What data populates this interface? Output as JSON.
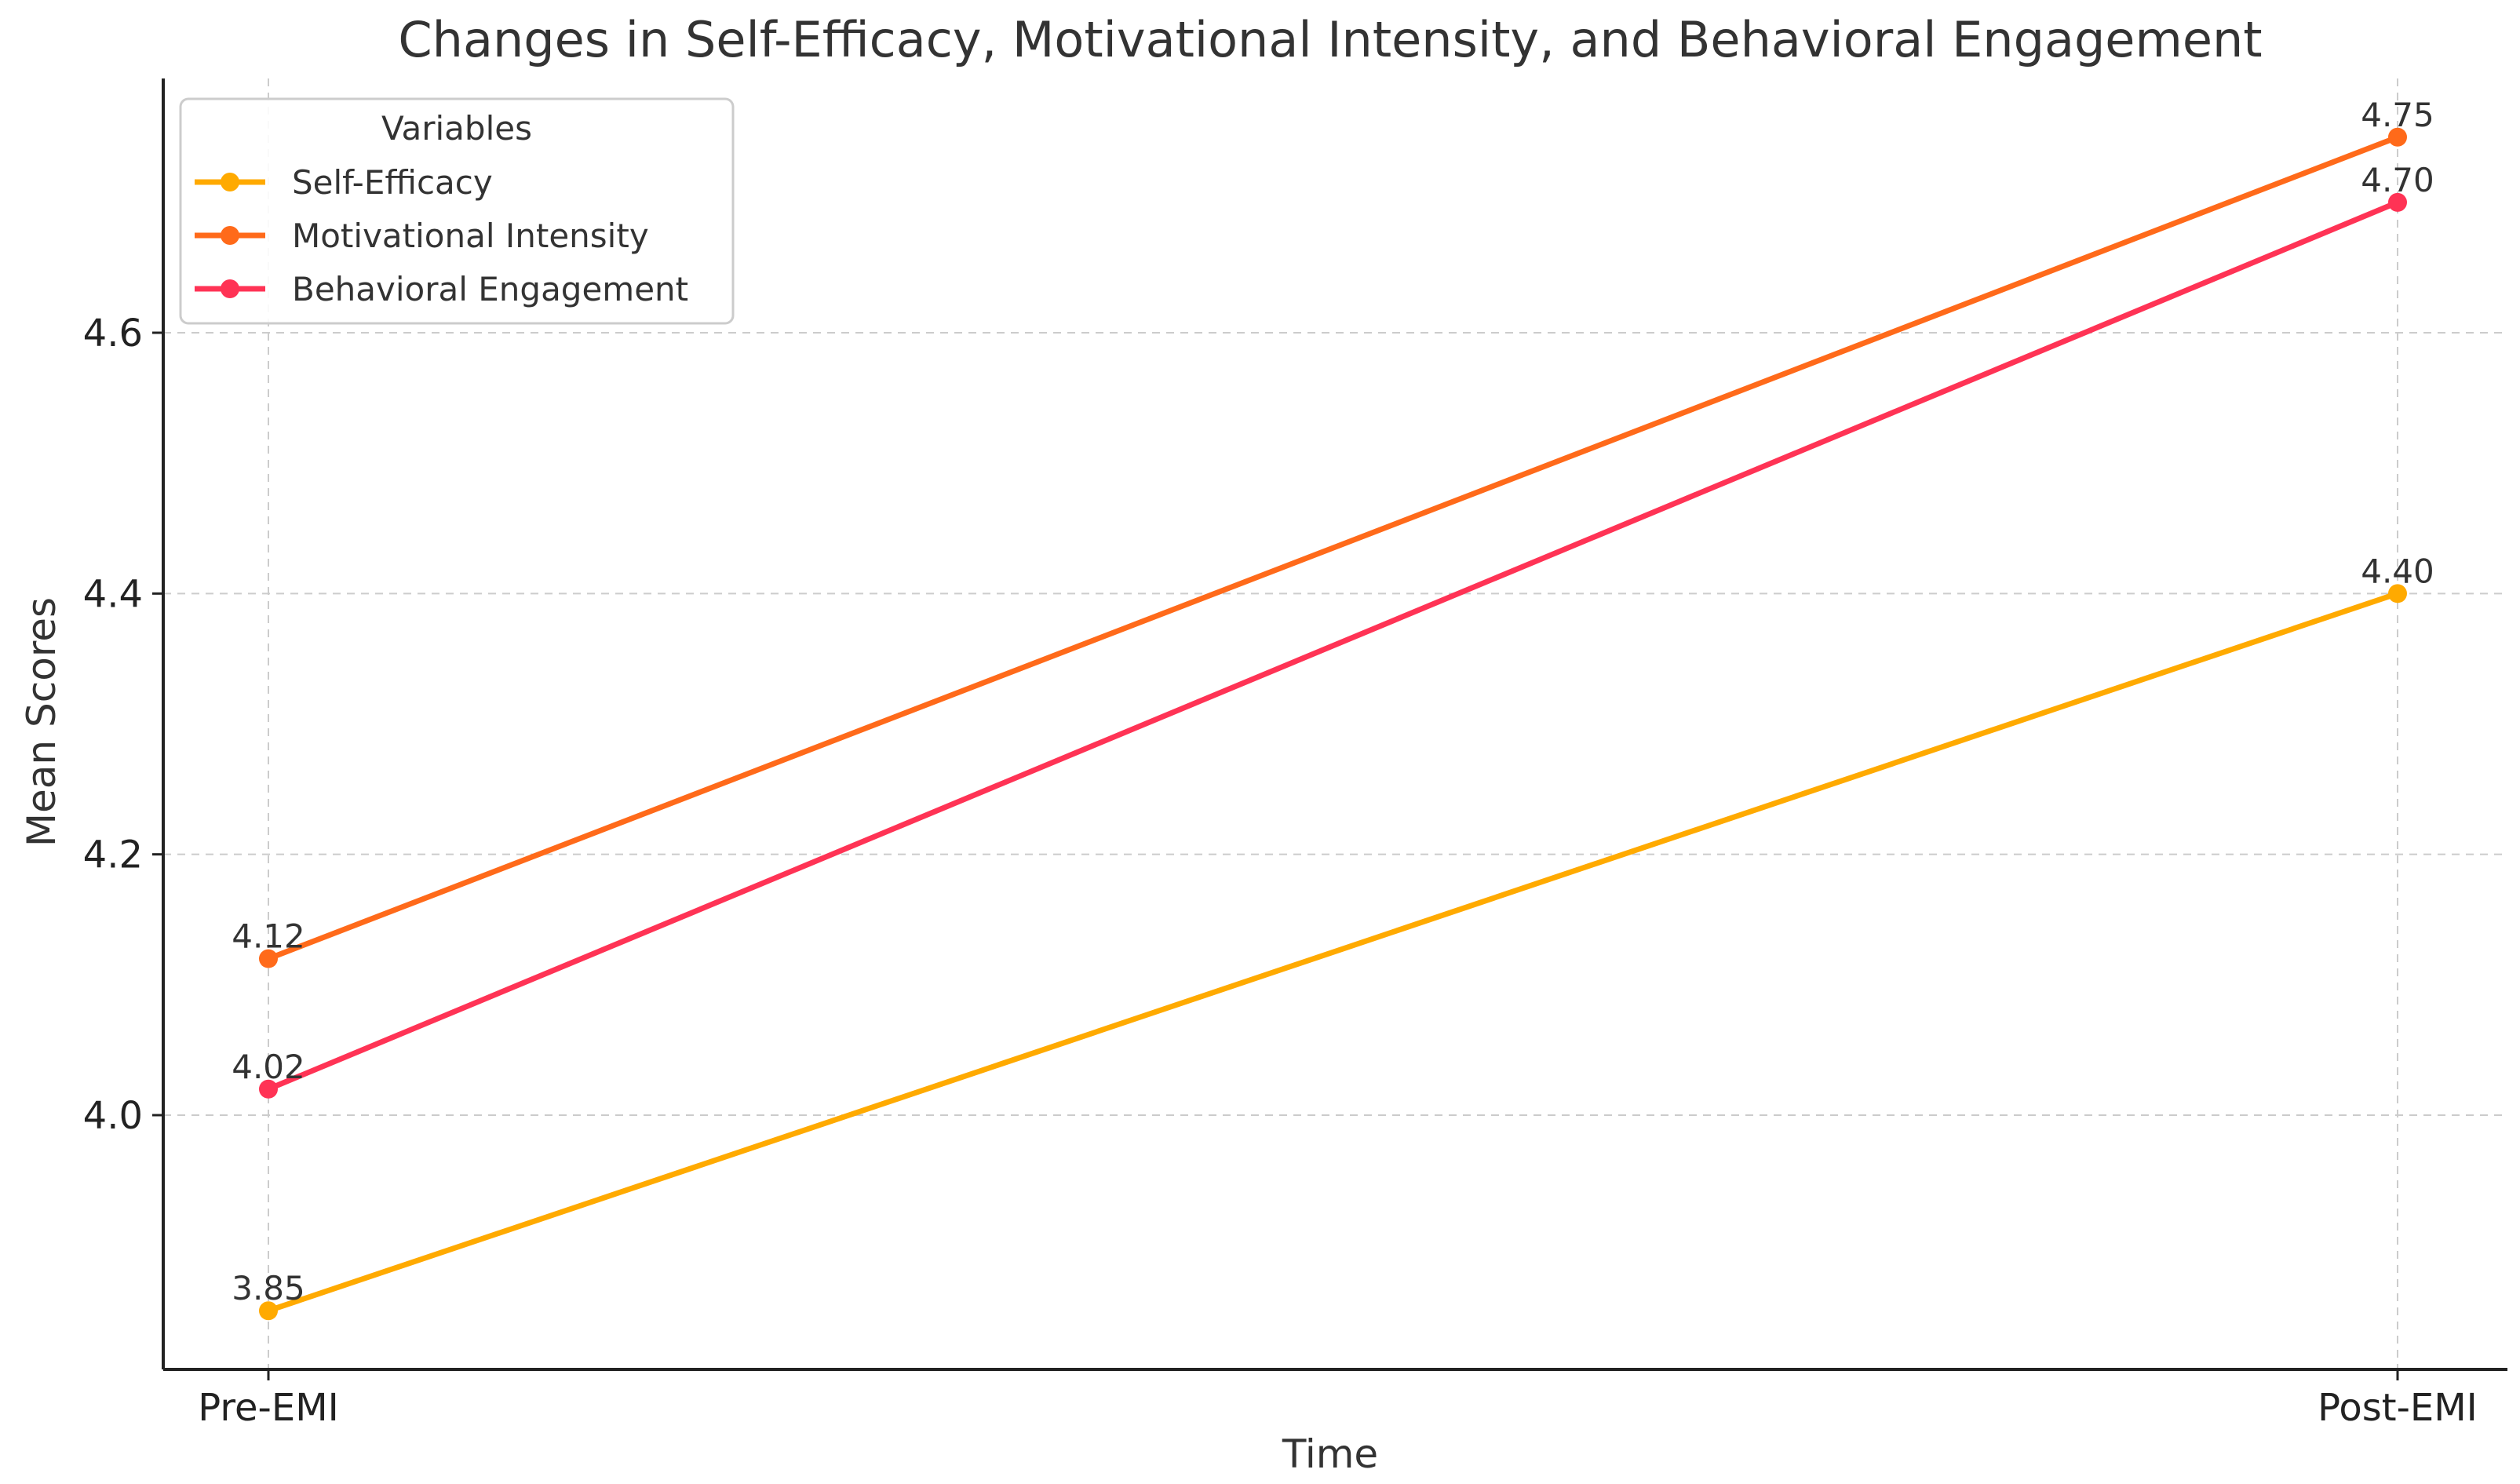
{
  "chart_data": {
    "type": "line",
    "title": "Changes in Self-Efficacy, Motivational Intensity, and Behavioral Engagement",
    "xlabel": "Time",
    "ylabel": "Mean Scores",
    "categories": [
      "Pre-EMI",
      "Post-EMI"
    ],
    "ylim": [
      3.805,
      4.795
    ],
    "yticks": [
      {
        "value": 4.0,
        "label": "4.0"
      },
      {
        "value": 4.2,
        "label": "4.2"
      },
      {
        "value": 4.4,
        "label": "4.4"
      },
      {
        "value": 4.6,
        "label": "4.6"
      }
    ],
    "grid": true,
    "legend": {
      "title": "Variables",
      "placement": "top-left"
    },
    "series": [
      {
        "name": "Self-Efficacy",
        "color": "#FFAA00",
        "values": [
          3.85,
          4.4
        ],
        "labels": [
          "3.85",
          "4.40"
        ]
      },
      {
        "name": "Motivational Intensity",
        "color": "#FF6A1A",
        "values": [
          4.12,
          4.75
        ],
        "labels": [
          "4.12",
          "4.75"
        ]
      },
      {
        "name": "Behavioral Engagement",
        "color": "#FF3355",
        "values": [
          4.02,
          4.7
        ],
        "labels": [
          "4.02",
          "4.70"
        ]
      }
    ]
  }
}
